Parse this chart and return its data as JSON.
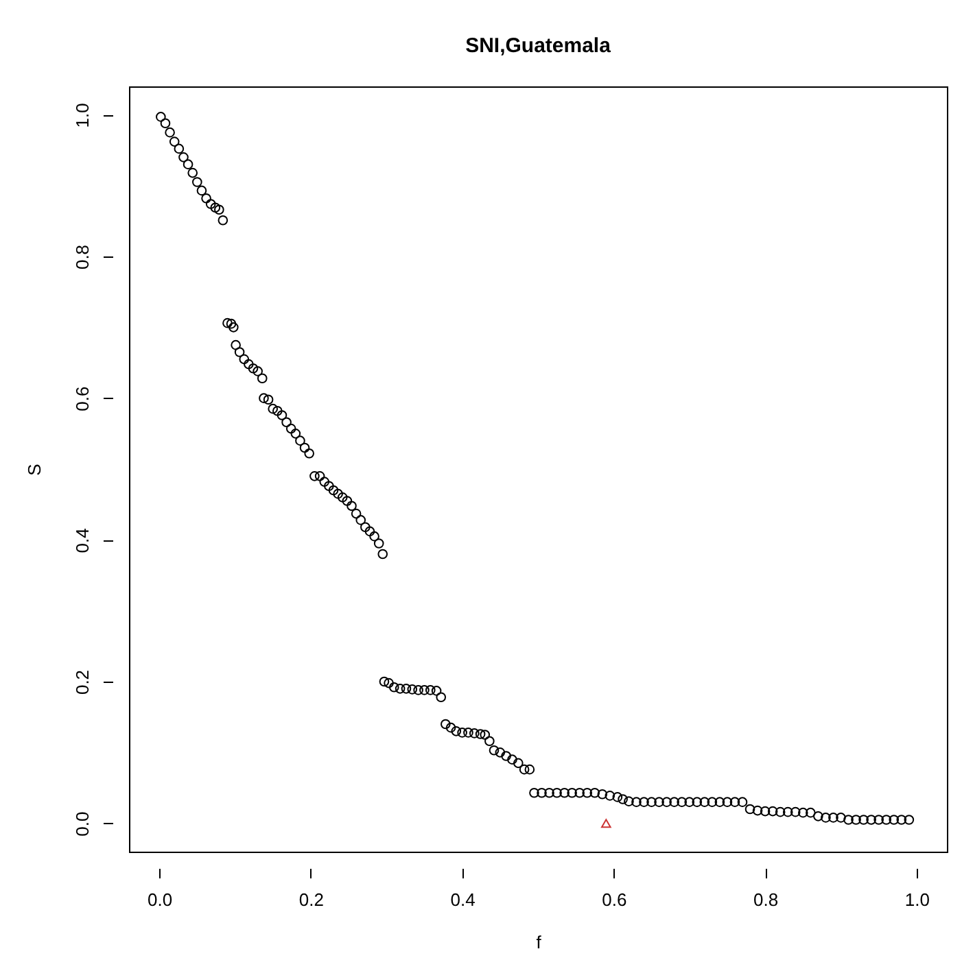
{
  "chart_data": {
    "type": "scatter",
    "title": "SNI,Guatemala",
    "xlabel": "f",
    "ylabel": "S",
    "xlim": [
      -0.04,
      1.04
    ],
    "ylim": [
      -0.04,
      1.04
    ],
    "xticks": [
      {
        "value": 0,
        "label": "0.0"
      },
      0.2,
      0.4,
      0.6,
      0.8,
      {
        "value": 1,
        "label": "1.0"
      }
    ],
    "yticks": [
      {
        "value": 0,
        "label": "0.0"
      },
      0.2,
      0.4,
      0.6,
      0.8,
      {
        "value": 1,
        "label": "1.0"
      }
    ],
    "grid": false,
    "series": [
      {
        "color": "#000000",
        "marker": "circle",
        "x": [
          0.002,
          0.008,
          0.014,
          0.02,
          0.026,
          0.032,
          0.038,
          0.044,
          0.05,
          0.056,
          0.062,
          0.068,
          0.074,
          0.079,
          0.084,
          0.09,
          0.095,
          0.098,
          0.101,
          0.106,
          0.112,
          0.118,
          0.124,
          0.13,
          0.136,
          0.138,
          0.144,
          0.15,
          0.156,
          0.162,
          0.168,
          0.174,
          0.18,
          0.186,
          0.192,
          0.198,
          0.205,
          0.212,
          0.218,
          0.224,
          0.23,
          0.236,
          0.242,
          0.248,
          0.254,
          0.26,
          0.266,
          0.272,
          0.278,
          0.284,
          0.29,
          0.295,
          0.297,
          0.303,
          0.31,
          0.318,
          0.326,
          0.334,
          0.342,
          0.35,
          0.358,
          0.366,
          0.372,
          0.378,
          0.385,
          0.392,
          0.4,
          0.408,
          0.416,
          0.424,
          0.43,
          0.436,
          0.442,
          0.45,
          0.458,
          0.466,
          0.474,
          0.482,
          0.489,
          0.495,
          0.505,
          0.515,
          0.525,
          0.535,
          0.545,
          0.555,
          0.565,
          0.575,
          0.585,
          0.595,
          0.605,
          0.612,
          0.62,
          0.63,
          0.64,
          0.65,
          0.66,
          0.67,
          0.68,
          0.69,
          0.7,
          0.71,
          0.72,
          0.73,
          0.74,
          0.75,
          0.76,
          0.77,
          0.78,
          0.79,
          0.8,
          0.81,
          0.82,
          0.83,
          0.84,
          0.85,
          0.86,
          0.87,
          0.88,
          0.89,
          0.9,
          0.91,
          0.92,
          0.93,
          0.94,
          0.95,
          0.96,
          0.97,
          0.98,
          0.99
        ],
        "values": [
          0.997,
          0.988,
          0.975,
          0.962,
          0.952,
          0.94,
          0.93,
          0.918,
          0.905,
          0.893,
          0.882,
          0.874,
          0.869,
          0.866,
          0.851,
          0.706,
          0.705,
          0.7,
          0.675,
          0.665,
          0.655,
          0.648,
          0.642,
          0.638,
          0.628,
          0.6,
          0.598,
          0.585,
          0.582,
          0.576,
          0.566,
          0.557,
          0.55,
          0.54,
          0.53,
          0.522,
          0.49,
          0.49,
          0.482,
          0.476,
          0.47,
          0.465,
          0.46,
          0.455,
          0.448,
          0.437,
          0.428,
          0.418,
          0.412,
          0.405,
          0.395,
          0.38,
          0.2,
          0.198,
          0.192,
          0.19,
          0.19,
          0.189,
          0.188,
          0.188,
          0.188,
          0.187,
          0.178,
          0.14,
          0.135,
          0.13,
          0.128,
          0.128,
          0.127,
          0.126,
          0.125,
          0.116,
          0.103,
          0.1,
          0.095,
          0.09,
          0.085,
          0.076,
          0.076,
          0.043,
          0.043,
          0.043,
          0.043,
          0.043,
          0.043,
          0.043,
          0.043,
          0.043,
          0.041,
          0.039,
          0.037,
          0.034,
          0.031,
          0.03,
          0.03,
          0.03,
          0.03,
          0.03,
          0.03,
          0.03,
          0.03,
          0.03,
          0.03,
          0.03,
          0.03,
          0.03,
          0.03,
          0.03,
          0.02,
          0.018,
          0.017,
          0.017,
          0.016,
          0.016,
          0.016,
          0.015,
          0.015,
          0.01,
          0.008,
          0.008,
          0.008,
          0.005,
          0.005,
          0.005,
          0.005,
          0.005,
          0.005,
          0.005,
          0.005,
          0.005
        ]
      },
      {
        "color": "#cc3333",
        "marker": "triangle",
        "x": [
          0.59
        ],
        "values": [
          0.0
        ]
      }
    ]
  }
}
